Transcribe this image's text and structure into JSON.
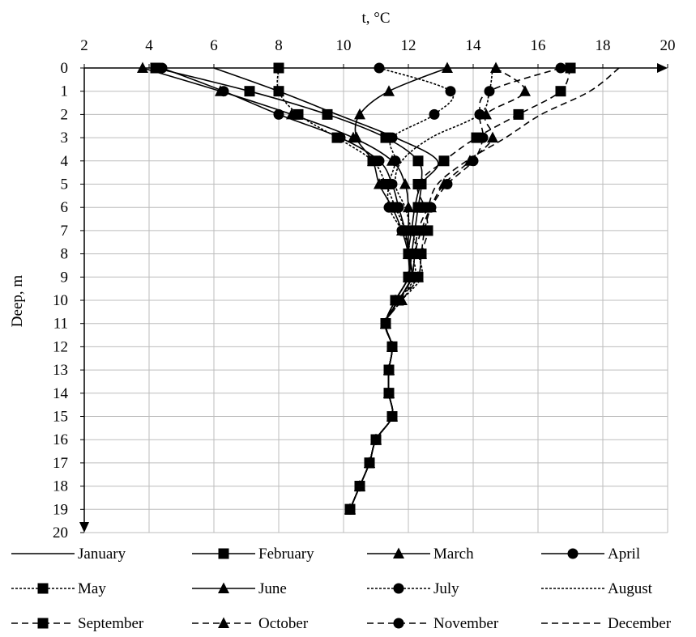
{
  "chart_data": {
    "type": "line",
    "xlabel": "t, °C",
    "ylabel": "Deep, m",
    "xlim": [
      2,
      20
    ],
    "ylim": [
      0,
      20
    ],
    "x_ticks": [
      2,
      4,
      6,
      8,
      10,
      12,
      14,
      16,
      18,
      20
    ],
    "y_ticks": [
      0,
      1,
      2,
      3,
      4,
      5,
      6,
      7,
      8,
      9,
      10,
      11,
      12,
      13,
      14,
      15,
      16,
      17,
      18,
      19,
      20
    ],
    "y_axis_inverted": true,
    "x_axis_position": "top",
    "grid": true,
    "legend_position": "bottom",
    "series": [
      {
        "name": "January",
        "line": "solid",
        "marker": "none",
        "x": [
          6.0,
          8.0,
          9.8,
          11.6,
          12.9,
          12.4,
          12.2,
          12.1,
          12.0,
          12.1,
          11.7,
          11.3,
          11.5,
          11.4,
          11.4,
          11.5,
          11.0,
          10.8,
          10.5,
          10.2
        ],
        "y": [
          0,
          1,
          2,
          3,
          4,
          5,
          6,
          7,
          8,
          9,
          10,
          11,
          12,
          13,
          14,
          15,
          16,
          17,
          18,
          19
        ]
      },
      {
        "name": "February",
        "line": "solid",
        "marker": "square",
        "x": [
          4.2,
          7.1,
          9.5,
          11.3,
          12.3,
          12.4,
          12.3,
          12.2,
          12.1,
          12.0,
          11.6,
          11.3,
          11.5,
          11.4,
          11.4,
          11.5,
          11.0,
          10.8,
          10.5,
          10.2
        ],
        "y": [
          0,
          1,
          2,
          3,
          4,
          5,
          6,
          7,
          8,
          9,
          10,
          11,
          12,
          13,
          14,
          15,
          16,
          17,
          18,
          19
        ]
      },
      {
        "name": "March",
        "line": "solid",
        "marker": "triangle",
        "x": [
          3.8,
          6.2,
          8.4,
          10.3,
          11.5,
          11.9,
          12.0,
          12.0,
          12.0,
          12.0,
          11.6,
          11.3,
          11.5,
          11.4,
          11.4,
          11.5,
          11.0,
          10.8,
          10.5,
          10.2
        ],
        "y": [
          0,
          1,
          2,
          3,
          4,
          5,
          6,
          7,
          8,
          9,
          10,
          11,
          12,
          13,
          14,
          15,
          16,
          17,
          18,
          19
        ]
      },
      {
        "name": "April",
        "line": "solid",
        "marker": "circle",
        "x": [
          4.4,
          6.3,
          8.0,
          9.9,
          11.1,
          11.5,
          11.7,
          11.9,
          12.0,
          12.0,
          11.6,
          11.3,
          11.5,
          11.4,
          11.4,
          11.5,
          11.0,
          10.8,
          10.5,
          10.2
        ],
        "y": [
          0,
          1,
          2,
          3,
          4,
          5,
          6,
          7,
          8,
          9,
          10,
          11,
          12,
          13,
          14,
          15,
          16,
          17,
          18,
          19
        ]
      },
      {
        "name": "May",
        "line": "dotted",
        "marker": "square",
        "x": [
          8.0,
          8.0,
          8.6,
          9.8,
          10.9,
          11.3,
          11.6,
          11.9,
          12.0,
          12.0,
          11.6,
          11.3,
          11.5,
          11.4,
          11.4,
          11.5,
          11.0,
          10.8,
          10.5,
          10.2
        ],
        "y": [
          0,
          1,
          2,
          3,
          4,
          5,
          6,
          7,
          8,
          9,
          10,
          11,
          12,
          13,
          14,
          15,
          16,
          17,
          18,
          19
        ]
      },
      {
        "name": "June",
        "line": "solid",
        "marker": "triangle",
        "x": [
          13.2,
          11.4,
          10.5,
          10.4,
          10.9,
          11.1,
          11.5,
          11.8,
          12.0,
          12.1,
          11.7,
          11.3,
          11.5,
          11.4,
          11.4,
          11.5,
          11.0,
          10.8,
          10.5,
          10.2
        ],
        "y": [
          0,
          1,
          2,
          3,
          4,
          5,
          6,
          7,
          8,
          9,
          10,
          11,
          12,
          13,
          14,
          15,
          16,
          17,
          18,
          19
        ]
      },
      {
        "name": "July",
        "line": "dotted",
        "marker": "circle",
        "x": [
          11.1,
          13.3,
          12.8,
          11.5,
          11.6,
          11.4,
          11.4,
          11.8,
          12.1,
          12.2,
          11.7,
          11.3,
          11.5,
          11.4,
          11.4,
          11.5,
          11.0,
          10.8,
          10.5,
          10.2
        ],
        "y": [
          0,
          1,
          2,
          3,
          4,
          5,
          6,
          7,
          8,
          9,
          10,
          11,
          12,
          13,
          14,
          15,
          16,
          17,
          18,
          19
        ]
      },
      {
        "name": "August",
        "line": "dotted",
        "marker": "none",
        "x": [
          14.6,
          14.5,
          14.2,
          12.7,
          11.8,
          11.6,
          11.9,
          12.1,
          12.3,
          12.4,
          11.8,
          11.3,
          11.5,
          11.4,
          11.4,
          11.5,
          11.0,
          10.8,
          10.5,
          10.2
        ],
        "y": [
          0,
          1,
          2,
          3,
          4,
          5,
          6,
          7,
          8,
          9,
          10,
          11,
          12,
          13,
          14,
          15,
          16,
          17,
          18,
          19
        ]
      },
      {
        "name": "September",
        "line": "dashed",
        "marker": "square",
        "x": [
          17.0,
          16.7,
          15.4,
          14.1,
          13.1,
          12.3,
          12.5,
          12.6,
          12.4,
          12.3,
          11.7,
          11.3,
          11.5,
          11.4,
          11.4,
          11.5,
          11.0,
          10.8,
          10.5,
          10.2
        ],
        "y": [
          0,
          1,
          2,
          3,
          4,
          5,
          6,
          7,
          8,
          9,
          10,
          11,
          12,
          13,
          14,
          15,
          16,
          17,
          18,
          19
        ]
      },
      {
        "name": "October",
        "line": "dashed",
        "marker": "triangle",
        "x": [
          14.7,
          15.6,
          14.4,
          14.6,
          13.9,
          13.1,
          12.7,
          12.5,
          12.4,
          12.3,
          11.8,
          11.3,
          11.5,
          11.4,
          11.4,
          11.5,
          11.0,
          10.8,
          10.5,
          10.2
        ],
        "y": [
          0,
          1,
          2,
          3,
          4,
          5,
          6,
          7,
          8,
          9,
          10,
          11,
          12,
          13,
          14,
          15,
          16,
          17,
          18,
          19
        ]
      },
      {
        "name": "November",
        "line": "dashed",
        "marker": "circle",
        "x": [
          16.7,
          14.5,
          14.2,
          14.3,
          14.0,
          13.2,
          12.7,
          12.4,
          12.2,
          12.1,
          11.7,
          11.3,
          11.5,
          11.4,
          11.4,
          11.5,
          11.0,
          10.8,
          10.5,
          10.2
        ],
        "y": [
          0,
          1,
          2,
          3,
          4,
          5,
          6,
          7,
          8,
          9,
          10,
          11,
          12,
          13,
          14,
          15,
          16,
          17,
          18,
          19
        ]
      },
      {
        "name": "December",
        "line": "dashed",
        "marker": "none",
        "x": [
          18.5,
          17.6,
          16.1,
          15.0,
          13.8,
          12.9,
          12.6,
          12.3,
          12.2,
          12.1,
          11.7,
          11.3,
          11.5,
          11.4,
          11.4,
          11.5,
          11.0,
          10.8,
          10.5,
          10.2
        ],
        "y": [
          0,
          1,
          2,
          3,
          4,
          5,
          6,
          7,
          8,
          9,
          10,
          11,
          12,
          13,
          14,
          15,
          16,
          17,
          18,
          19
        ]
      }
    ]
  }
}
